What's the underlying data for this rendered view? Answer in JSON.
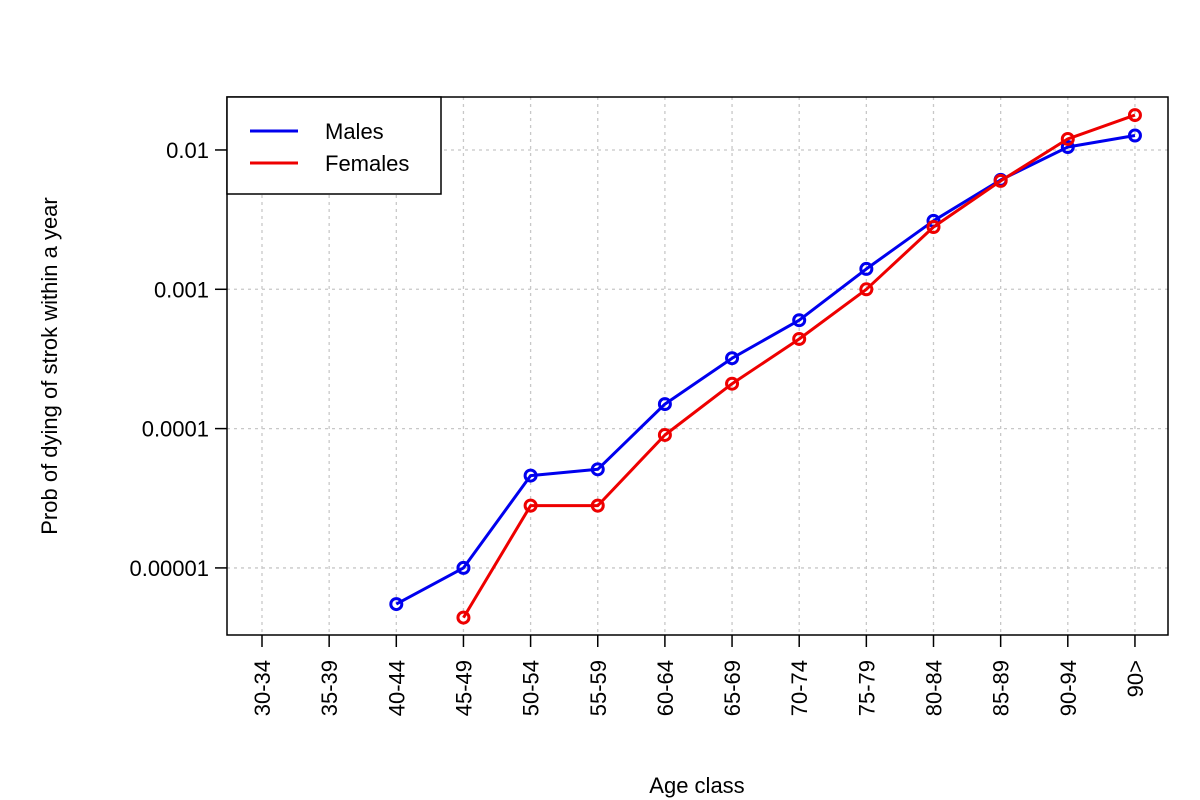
{
  "chart_data": {
    "type": "line",
    "title": "",
    "xlabel": "Age class",
    "ylabel": "Prob of dying of strok within a year",
    "categories": [
      "30-34",
      "35-39",
      "40-44",
      "45-49",
      "50-54",
      "55-59",
      "60-64",
      "65-69",
      "70-74",
      "75-79",
      "80-84",
      "85-89",
      "90-94",
      "90>"
    ],
    "y_scale": "log",
    "ylim": [
      3.3e-06,
      0.024
    ],
    "y_ticks": [
      1e-05,
      0.0001,
      0.001,
      0.01
    ],
    "y_tick_labels": [
      "0.00001",
      "0.0001",
      "0.001",
      "0.01"
    ],
    "grid": true,
    "legend_position": "top-left",
    "series": [
      {
        "name": "Males",
        "color": "#0000ee",
        "values": [
          null,
          null,
          5.5e-06,
          1e-05,
          4.6e-05,
          5.1e-05,
          0.00015,
          0.00032,
          0.0006,
          0.0014,
          0.0031,
          0.0061,
          0.0105,
          0.0127
        ]
      },
      {
        "name": "Females",
        "color": "#ee0000",
        "values": [
          null,
          null,
          null,
          4.4e-06,
          2.8e-05,
          2.8e-05,
          9e-05,
          0.00021,
          0.00044,
          0.001,
          0.0028,
          0.006,
          0.012,
          0.0178
        ]
      }
    ]
  }
}
